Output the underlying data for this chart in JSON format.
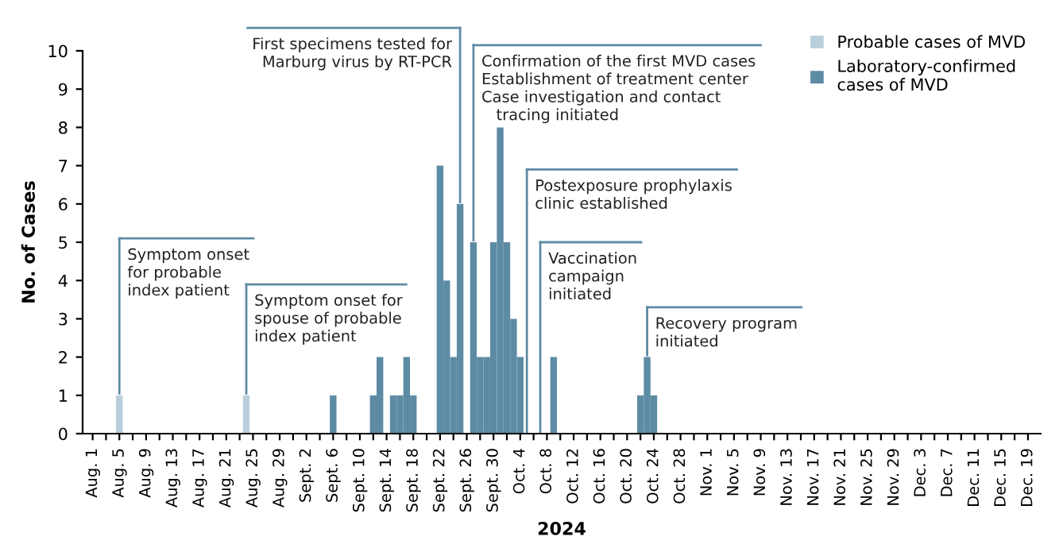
{
  "chart_data": {
    "type": "bar",
    "xlabel": "2024",
    "ylabel": "No. of Cases",
    "series": [
      {
        "name": "Probable cases of MVD",
        "color": "#b9cfdc",
        "x": [
          "2024-08-05",
          "2024-08-24"
        ],
        "values": [
          1,
          1
        ]
      },
      {
        "name": "Laboratory-confirmed\ncases of MVD",
        "color": "#5e8ba4",
        "x": [
          "2024-09-06",
          "2024-09-12",
          "2024-09-13",
          "2024-09-15",
          "2024-09-16",
          "2024-09-17",
          "2024-09-18",
          "2024-09-22",
          "2024-09-23",
          "2024-09-24",
          "2024-09-25",
          "2024-09-27",
          "2024-09-28",
          "2024-09-29",
          "2024-09-30",
          "2024-10-01",
          "2024-10-02",
          "2024-10-03",
          "2024-10-04",
          "2024-10-09",
          "2024-10-22",
          "2024-10-23",
          "2024-10-24"
        ],
        "values": [
          1,
          1,
          2,
          1,
          1,
          2,
          1,
          7,
          4,
          2,
          6,
          5,
          2,
          2,
          5,
          8,
          5,
          3,
          2,
          2,
          1,
          2,
          1
        ]
      }
    ],
    "ref_lines": [
      {
        "axis": "x",
        "value": "2024-08-05",
        "label": "Symptom onset\nfor probable\nindex patient",
        "color": "#5e8ba4"
      },
      {
        "axis": "x",
        "value": "2024-08-24",
        "label": "Symptom onset for\nspouse of probable\nindex patient",
        "color": "#5e8ba4"
      },
      {
        "axis": "x",
        "value": "2024-09-25",
        "label": "First specimens tested for\nMarburg virus by RT-PCR",
        "color": "#5e8ba4"
      },
      {
        "axis": "x",
        "value": "2024-09-27",
        "label": "Confirmation of the first MVD cases\nEstablishment of treatment center\nCase investigation and contact\n   tracing initiated",
        "color": "#5e8ba4"
      },
      {
        "axis": "x",
        "value": "2024-10-05",
        "label": "Postexposure prophylaxis\nclinic established",
        "color": "#5e8ba4"
      },
      {
        "axis": "x",
        "value": "2024-10-07",
        "label": "Vaccination\ncampaign\ninitiated",
        "color": "#5e8ba4"
      },
      {
        "axis": "x",
        "value": "2024-10-23",
        "label": "Recovery program\ninitiated",
        "color": "#5e8ba4"
      }
    ],
    "xlim": [
      "2024-07-30T12:00",
      "2024-12-20T22:00"
    ],
    "ylim": [
      0,
      10
    ],
    "yticks": [
      0,
      1,
      2,
      3,
      4,
      5,
      6,
      7,
      8,
      9,
      10
    ],
    "xticks": [
      {
        "value": "2024-08-01",
        "label": "Aug. 1"
      },
      {
        "value": "2024-08-03",
        "label": null
      },
      {
        "value": "2024-08-05",
        "label": "Aug. 5"
      },
      {
        "value": "2024-08-07",
        "label": null
      },
      {
        "value": "2024-08-09",
        "label": "Aug. 9"
      },
      {
        "value": "2024-08-11",
        "label": null
      },
      {
        "value": "2024-08-13",
        "label": "Aug. 13"
      },
      {
        "value": "2024-08-15",
        "label": null
      },
      {
        "value": "2024-08-17",
        "label": "Aug. 17"
      },
      {
        "value": "2024-08-19",
        "label": null
      },
      {
        "value": "2024-08-21",
        "label": "Aug. 21"
      },
      {
        "value": "2024-08-23",
        "label": null
      },
      {
        "value": "2024-08-25",
        "label": "Aug. 25"
      },
      {
        "value": "2024-08-27",
        "label": null
      },
      {
        "value": "2024-08-29",
        "label": "Aug. 29"
      },
      {
        "value": "2024-08-31",
        "label": null
      },
      {
        "value": "2024-09-02",
        "label": "Sept. 2"
      },
      {
        "value": "2024-09-04",
        "label": null
      },
      {
        "value": "2024-09-06",
        "label": "Sept. 6"
      },
      {
        "value": "2024-09-08",
        "label": null
      },
      {
        "value": "2024-09-10",
        "label": "Sept. 10"
      },
      {
        "value": "2024-09-12",
        "label": null
      },
      {
        "value": "2024-09-14",
        "label": "Sept. 14"
      },
      {
        "value": "2024-09-16",
        "label": null
      },
      {
        "value": "2024-09-18",
        "label": "Sept. 18"
      },
      {
        "value": "2024-09-20",
        "label": null
      },
      {
        "value": "2024-09-22",
        "label": "Sept. 22"
      },
      {
        "value": "2024-09-24",
        "label": null
      },
      {
        "value": "2024-09-26",
        "label": "Sept. 26"
      },
      {
        "value": "2024-09-28",
        "label": null
      },
      {
        "value": "2024-09-30",
        "label": "Sept. 30"
      },
      {
        "value": "2024-10-02",
        "label": null
      },
      {
        "value": "2024-10-04",
        "label": "Oct. 4"
      },
      {
        "value": "2024-10-06",
        "label": null
      },
      {
        "value": "2024-10-08",
        "label": "Oct. 8"
      },
      {
        "value": "2024-10-10",
        "label": null
      },
      {
        "value": "2024-10-12",
        "label": "Oct. 12"
      },
      {
        "value": "2024-10-14",
        "label": null
      },
      {
        "value": "2024-10-16",
        "label": "Oct. 16"
      },
      {
        "value": "2024-10-18",
        "label": null
      },
      {
        "value": "2024-10-20",
        "label": "Oct. 20"
      },
      {
        "value": "2024-10-22",
        "label": null
      },
      {
        "value": "2024-10-24",
        "label": "Oct. 24"
      },
      {
        "value": "2024-10-26",
        "label": null
      },
      {
        "value": "2024-10-28",
        "label": "Oct. 28"
      },
      {
        "value": "2024-10-30",
        "label": null
      },
      {
        "value": "2024-11-01",
        "label": "Nov. 1"
      },
      {
        "value": "2024-11-03",
        "label": null
      },
      {
        "value": "2024-11-05",
        "label": "Nov. 5"
      },
      {
        "value": "2024-11-07",
        "label": null
      },
      {
        "value": "2024-11-09",
        "label": "Nov. 9"
      },
      {
        "value": "2024-11-11",
        "label": null
      },
      {
        "value": "2024-11-13",
        "label": "Nov. 13"
      },
      {
        "value": "2024-11-15",
        "label": null
      },
      {
        "value": "2024-11-17",
        "label": "Nov. 17"
      },
      {
        "value": "2024-11-19",
        "label": null
      },
      {
        "value": "2024-11-21",
        "label": "Nov. 21"
      },
      {
        "value": "2024-11-23",
        "label": null
      },
      {
        "value": "2024-11-25",
        "label": "Nov. 25"
      },
      {
        "value": "2024-11-27",
        "label": null
      },
      {
        "value": "2024-11-29",
        "label": "Nov. 29"
      },
      {
        "value": "2024-12-01",
        "label": null
      },
      {
        "value": "2024-12-03",
        "label": "Dec. 3"
      },
      {
        "value": "2024-12-05",
        "label": null
      },
      {
        "value": "2024-12-07",
        "label": "Dec. 7"
      },
      {
        "value": "2024-12-09",
        "label": null
      },
      {
        "value": "2024-12-11",
        "label": "Dec. 11"
      },
      {
        "value": "2024-12-13",
        "label": null
      },
      {
        "value": "2024-12-15",
        "label": "Dec. 15"
      },
      {
        "value": "2024-12-17",
        "label": null
      },
      {
        "value": "2024-12-19",
        "label": "Dec. 19"
      }
    ],
    "legend": "top right",
    "grid": false
  }
}
